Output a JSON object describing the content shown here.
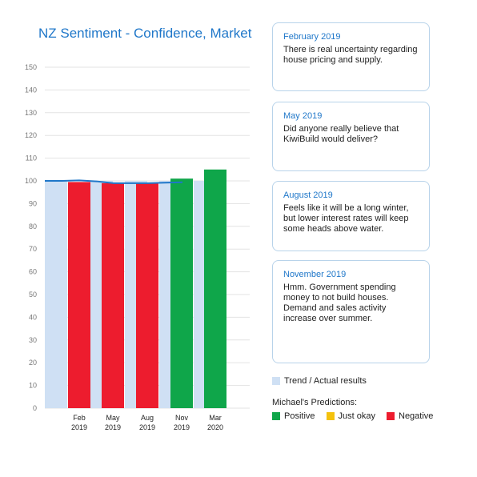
{
  "chart_data": {
    "type": "bar",
    "title": "NZ Sentiment - Confidence, Market",
    "ylim": [
      0,
      150
    ],
    "yticks": [
      "0",
      "10",
      "20",
      "30",
      "40",
      "50",
      "60",
      "70",
      "80",
      "90",
      "100",
      "110",
      "120",
      "130",
      "140",
      "150"
    ],
    "categories": [
      {
        "line1": "Feb",
        "line2": "2019"
      },
      {
        "line1": "May",
        "line2": "2019"
      },
      {
        "line1": "Aug",
        "line2": "2019"
      },
      {
        "line1": "Nov",
        "line2": "2019"
      },
      {
        "line1": "Mar",
        "line2": "2020"
      }
    ],
    "trend_bars": [
      100,
      100,
      100,
      100,
      100,
      100,
      100,
      100
    ],
    "predictions": [
      {
        "value": 99.5,
        "type": "negative"
      },
      {
        "value": 99,
        "type": "negative"
      },
      {
        "value": 99,
        "type": "negative"
      },
      {
        "value": 101,
        "type": "positive"
      },
      {
        "value": 105,
        "type": "positive"
      }
    ],
    "trend_line": [
      100,
      100,
      100.2,
      99.8,
      99,
      99,
      99,
      99.2,
      99.4
    ],
    "grid": true
  },
  "colors": {
    "title": "#1f77c9",
    "trend": "#cfe0f4",
    "positive": "#0fa64a",
    "just_okay": "#f4c20d",
    "negative": "#ed1c2e",
    "line": "#1f77c9",
    "grid": "#e3e3e3"
  },
  "notes": [
    {
      "date": "February 2019",
      "text": "There is real uncertainty regarding house pricing and supply."
    },
    {
      "date": "May 2019",
      "text": "Did anyone really believe that KiwiBuild would deliver?"
    },
    {
      "date": "August 2019",
      "text": "Feels like it will be a long winter, but lower interest rates will keep some heads above water."
    },
    {
      "date": "November 2019",
      "text": "Hmm. Government spending money to not build houses. Demand and sales activity increase over summer."
    }
  ],
  "legend": {
    "trend_label": "Trend / Actual results",
    "predictions_heading": "Michael's Predictions:",
    "positive_label": "Positive",
    "just_okay_label": "Just okay",
    "negative_label": "Negative"
  }
}
